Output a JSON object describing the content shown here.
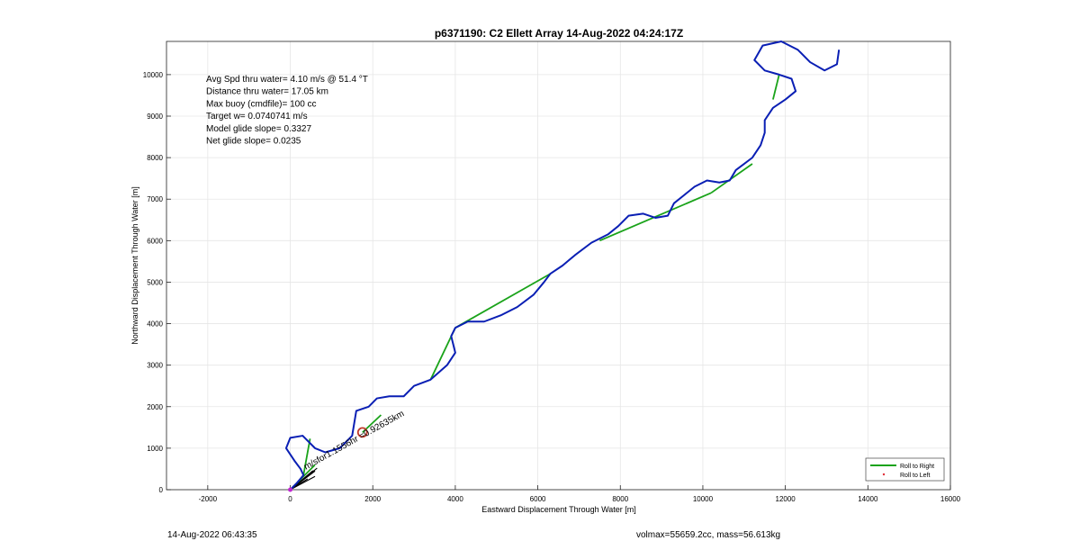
{
  "chart_data": {
    "type": "line",
    "title": "p6371190: C2 Ellett Array 14-Aug-2022 04:24:17Z",
    "xlabel": "Eastward Displacement Through Water [m]",
    "ylabel": "Northward Displacement Through Water [m]",
    "xlim": [
      -3000,
      16000
    ],
    "ylim": [
      0,
      10800
    ],
    "xticks": [
      -2000,
      0,
      2000,
      4000,
      6000,
      8000,
      10000,
      12000,
      14000,
      16000
    ],
    "yticks": [
      0,
      1000,
      2000,
      3000,
      4000,
      5000,
      6000,
      7000,
      8000,
      9000,
      10000
    ],
    "grid": true,
    "annotations": [
      "Avg Spd thru water=  4.10 m/s @  51.4 °T",
      "Distance thru water= 17.05 km",
      "Max buoy (cmdfile)= 100 cc",
      "Target w= 0.0740741 m/s",
      "Model glide slope= 0.3327",
      "Net glide slope= 0.0235"
    ],
    "rotated_label": "m/sfor1.1556hr =0.92635km",
    "marker": {
      "x": 1750,
      "y": 1380,
      "color": "#c0392b"
    },
    "legend": {
      "placement": "bottom-right",
      "entries": [
        {
          "label": "Roll to Right",
          "color": "#1aa31a",
          "style": "line"
        },
        {
          "label": "Roll to Left",
          "color": "#e0303a",
          "style": "dot"
        }
      ]
    },
    "series": [
      {
        "name": "Roll to Right",
        "color": "#1aa31a",
        "segments": [
          [
            [
              0,
              0
            ],
            [
              600,
              600
            ]
          ],
          [
            [
              320,
              350
            ],
            [
              480,
              1230
            ]
          ],
          [
            [
              1750,
              1380
            ],
            [
              2200,
              1800
            ]
          ],
          [
            [
              3400,
              2650
            ],
            [
              4000,
              3900
            ]
          ],
          [
            [
              4000,
              3900
            ],
            [
              6300,
              5200
            ]
          ],
          [
            [
              7500,
              6000
            ],
            [
              10200,
              7150
            ]
          ],
          [
            [
              10200,
              7150
            ],
            [
              11200,
              7850
            ]
          ],
          [
            [
              11700,
              9400
            ],
            [
              11850,
              10000
            ]
          ]
        ]
      },
      {
        "name": "track",
        "color": "#0a1fb4",
        "points": [
          [
            0,
            0
          ],
          [
            150,
            150
          ],
          [
            320,
            350
          ],
          [
            250,
            500
          ],
          [
            100,
            700
          ],
          [
            -100,
            1000
          ],
          [
            0,
            1250
          ],
          [
            300,
            1300
          ],
          [
            600,
            1000
          ],
          [
            850,
            900
          ],
          [
            1200,
            1000
          ],
          [
            1500,
            1300
          ],
          [
            1550,
            1600
          ],
          [
            1600,
            1900
          ],
          [
            1900,
            2000
          ],
          [
            2100,
            2200
          ],
          [
            2400,
            2250
          ],
          [
            2750,
            2250
          ],
          [
            3000,
            2500
          ],
          [
            3400,
            2650
          ],
          [
            3800,
            3000
          ],
          [
            4000,
            3300
          ],
          [
            3900,
            3700
          ],
          [
            4000,
            3900
          ],
          [
            4300,
            4050
          ],
          [
            4700,
            4050
          ],
          [
            5100,
            4200
          ],
          [
            5500,
            4400
          ],
          [
            5900,
            4700
          ],
          [
            6150,
            5000
          ],
          [
            6300,
            5200
          ],
          [
            6600,
            5400
          ],
          [
            6900,
            5650
          ],
          [
            7300,
            5950
          ],
          [
            7700,
            6150
          ],
          [
            7950,
            6350
          ],
          [
            8200,
            6600
          ],
          [
            8550,
            6650
          ],
          [
            8850,
            6550
          ],
          [
            9150,
            6600
          ],
          [
            9300,
            6900
          ],
          [
            9550,
            7100
          ],
          [
            9800,
            7300
          ],
          [
            10100,
            7450
          ],
          [
            10400,
            7400
          ],
          [
            10650,
            7450
          ],
          [
            10800,
            7700
          ],
          [
            11000,
            7850
          ],
          [
            11200,
            8000
          ],
          [
            11400,
            8300
          ],
          [
            11500,
            8600
          ],
          [
            11500,
            8900
          ],
          [
            11700,
            9200
          ],
          [
            12000,
            9400
          ],
          [
            12250,
            9600
          ],
          [
            12150,
            9900
          ],
          [
            11850,
            10000
          ],
          [
            11500,
            10100
          ],
          [
            11250,
            10350
          ],
          [
            11450,
            10700
          ],
          [
            11900,
            10800
          ],
          [
            12300,
            10600
          ],
          [
            12600,
            10300
          ],
          [
            12950,
            10100
          ],
          [
            13250,
            10250
          ],
          [
            13300,
            10600
          ]
        ]
      }
    ]
  },
  "footer": {
    "timestamp": "14-Aug-2022 06:43:35",
    "volmax_mass": "volmax=55659.2cc, mass=56.613kg"
  }
}
